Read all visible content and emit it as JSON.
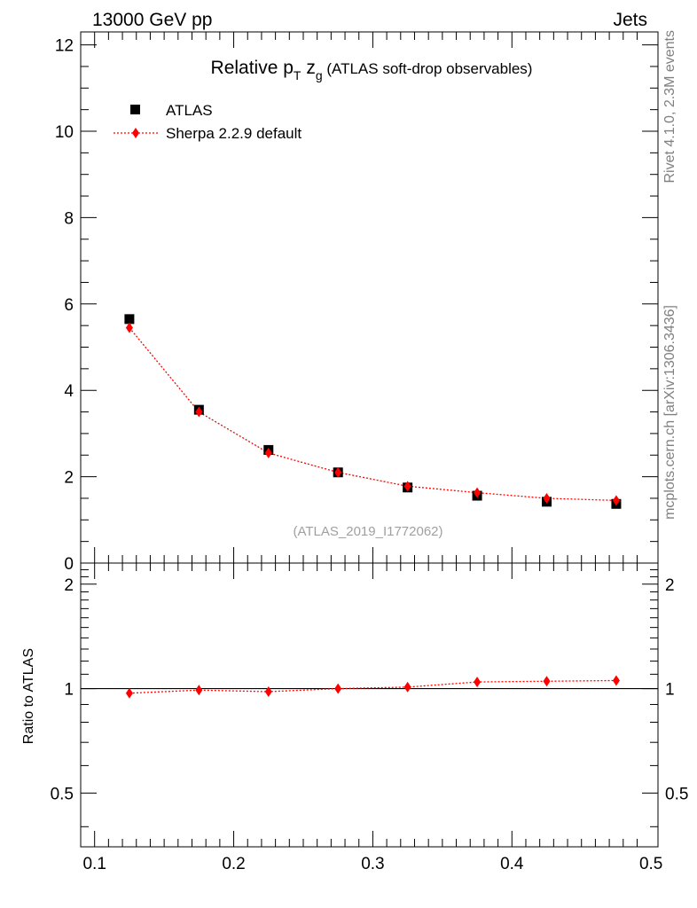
{
  "header": {
    "energy_label": "13000 GeV pp",
    "process_label": "Jets"
  },
  "side": {
    "rivet_label": "Rivet 4.1.0,  2.3M events",
    "mcplots_label": "mcplots.cern.ch [arXiv:1306.3436]"
  },
  "colors": {
    "data": "#000000",
    "mc": "#ff0000"
  },
  "chart_data": {
    "type": "scatter",
    "title": {
      "prefix": "Relative p",
      "sub_t": "T",
      "mid": " z",
      "sub_g": "g",
      "suffix": " (ATLAS soft-drop observables)"
    },
    "analysis_label": "(ATLAS_2019_I1772062)",
    "x": [
      0.125,
      0.175,
      0.225,
      0.275,
      0.325,
      0.375,
      0.425,
      0.475
    ],
    "xlim": [
      0.09,
      0.505
    ],
    "xticks": [
      0.1,
      0.2,
      0.3,
      0.4,
      0.5
    ],
    "xtick_labels": [
      "0.1",
      "0.2",
      "0.3",
      "0.4",
      "0.5"
    ],
    "main": {
      "ylim": [
        0,
        12.3
      ],
      "yticks": [
        0,
        2,
        4,
        6,
        8,
        10,
        12
      ],
      "ytick_labels": [
        "0",
        "2",
        "4",
        "6",
        "8",
        "10",
        "12"
      ]
    },
    "ratio": {
      "ylabel": "Ratio to ATLAS",
      "ylim": [
        0.35,
        2.3
      ],
      "yticks": [
        0.5,
        1,
        2
      ],
      "ytick_labels": [
        "0.5",
        "1",
        "2"
      ],
      "values": [
        0.97,
        0.99,
        0.98,
        1.0,
        1.01,
        1.045,
        1.05,
        1.055
      ]
    },
    "series": [
      {
        "name": "ATLAS",
        "marker": "square",
        "values": [
          5.65,
          3.55,
          2.62,
          2.1,
          1.75,
          1.56,
          1.42,
          1.37
        ]
      },
      {
        "name": "Sherpa 2.2.9 default",
        "marker": "diamond",
        "line": "dotted",
        "values": [
          5.45,
          3.5,
          2.55,
          2.1,
          1.78,
          1.63,
          1.5,
          1.45
        ]
      }
    ]
  }
}
